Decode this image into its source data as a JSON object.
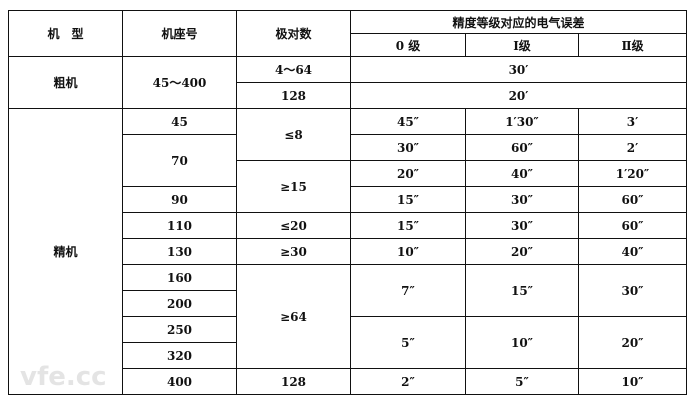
{
  "header": {
    "col_type": "机　型",
    "col_frame": "机座号",
    "col_poles": "极对数",
    "col_error": "精度等级对应的电气误差",
    "grade0": "0 级",
    "grade1": "Ⅰ级",
    "grade2": "Ⅱ级"
  },
  "coarse": {
    "type": "粗机",
    "frame": "45～400",
    "rows": [
      {
        "poles": "4～64",
        "error": "30′"
      },
      {
        "poles": "128",
        "error": "20′"
      }
    ]
  },
  "fine": {
    "type": "精机",
    "frames": [
      "45",
      "70",
      "90",
      "110",
      "130",
      "160",
      "200",
      "250",
      "320",
      "400"
    ],
    "poles": [
      "≤8",
      "≥15",
      "≤20",
      "≥30",
      "≥64",
      "128"
    ],
    "errors": [
      [
        "45″",
        "1′30″",
        "3′"
      ],
      [
        "30″",
        "60″",
        "2′"
      ],
      [
        "20″",
        "40″",
        "1′20″"
      ],
      [
        "15″",
        "30″",
        "60″"
      ],
      [
        "15″",
        "30″",
        "60″"
      ],
      [
        "10″",
        "20″",
        "40″"
      ],
      [
        "7″",
        "15″",
        "30″"
      ],
      [
        "5″",
        "10″",
        "20″"
      ],
      [
        "2″",
        "5″",
        "10″"
      ]
    ]
  },
  "watermark": "vfe.cc"
}
